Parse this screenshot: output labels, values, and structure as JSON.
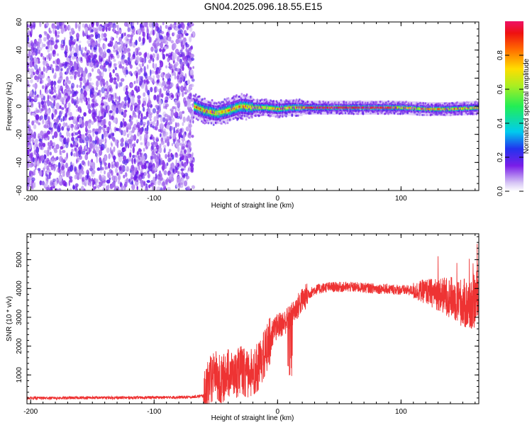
{
  "figure": {
    "title": "GN04.2025.096.18.55.E15"
  },
  "chart_data": [
    {
      "type": "heatmap",
      "xlabel": "Height of straight line (km)",
      "ylabel": "Frequency (Hz)",
      "xlim": [
        -203,
        163
      ],
      "ylim": [
        -60,
        60
      ],
      "xticks": [
        -200,
        -100,
        0,
        100
      ],
      "yticks": [
        -60,
        -40,
        -20,
        0,
        20,
        40,
        60
      ],
      "colorbar": {
        "label": "Normalized spectral amplitude",
        "range": [
          0,
          1
        ],
        "ticks": [
          0.0,
          0.2,
          0.4,
          0.6,
          0.8
        ],
        "tick_labels": [
          "0.0",
          "0.2",
          "0.4",
          "0.6",
          "0.8"
        ]
      },
      "regions": {
        "noise_x_range": [
          -203,
          -68
        ],
        "signal_x_range": [
          -68,
          163
        ],
        "signal_center_track": [
          [
            -68,
            0
          ],
          [
            -60,
            -3
          ],
          [
            -50,
            -5
          ],
          [
            -40,
            -3
          ],
          [
            -30,
            0
          ],
          [
            -20,
            -1
          ],
          [
            -10,
            -1
          ],
          [
            0,
            -2
          ],
          [
            10,
            -1
          ],
          [
            20,
            -1
          ],
          [
            40,
            -1
          ],
          [
            60,
            -1
          ],
          [
            80,
            -1
          ],
          [
            100,
            -1
          ],
          [
            120,
            -2
          ],
          [
            140,
            -2
          ],
          [
            163,
            -1
          ]
        ],
        "strong_band_x_range": [
          22,
          92
        ]
      }
    },
    {
      "type": "line",
      "xlabel": "Height of straight line (km)",
      "ylabel": "SNR (10 * v/v)",
      "xlim": [
        -203,
        163
      ],
      "ylim": [
        0,
        5900
      ],
      "xticks": [
        -200,
        -100,
        0,
        100
      ],
      "yticks": [
        1000,
        2000,
        3000,
        4000,
        5000
      ],
      "series_color": "#ee3333",
      "envelope": {
        "x": [
          -203,
          -180,
          -150,
          -120,
          -90,
          -70,
          -60,
          -55,
          -50,
          -45,
          -40,
          -35,
          -30,
          -25,
          -20,
          -15,
          -10,
          -5,
          0,
          5,
          10,
          15,
          20,
          25,
          30,
          35,
          40,
          60,
          80,
          100,
          120,
          130,
          140,
          150,
          155,
          160,
          163
        ],
        "y": [
          200,
          200,
          210,
          210,
          220,
          230,
          280,
          900,
          1100,
          900,
          1200,
          1000,
          1300,
          1100,
          1200,
          1400,
          1900,
          2400,
          2700,
          2800,
          3000,
          3300,
          3600,
          3800,
          3950,
          4000,
          4050,
          4050,
          4000,
          3950,
          3900,
          3800,
          3700,
          3500,
          3400,
          3600,
          3700
        ]
      }
    }
  ]
}
